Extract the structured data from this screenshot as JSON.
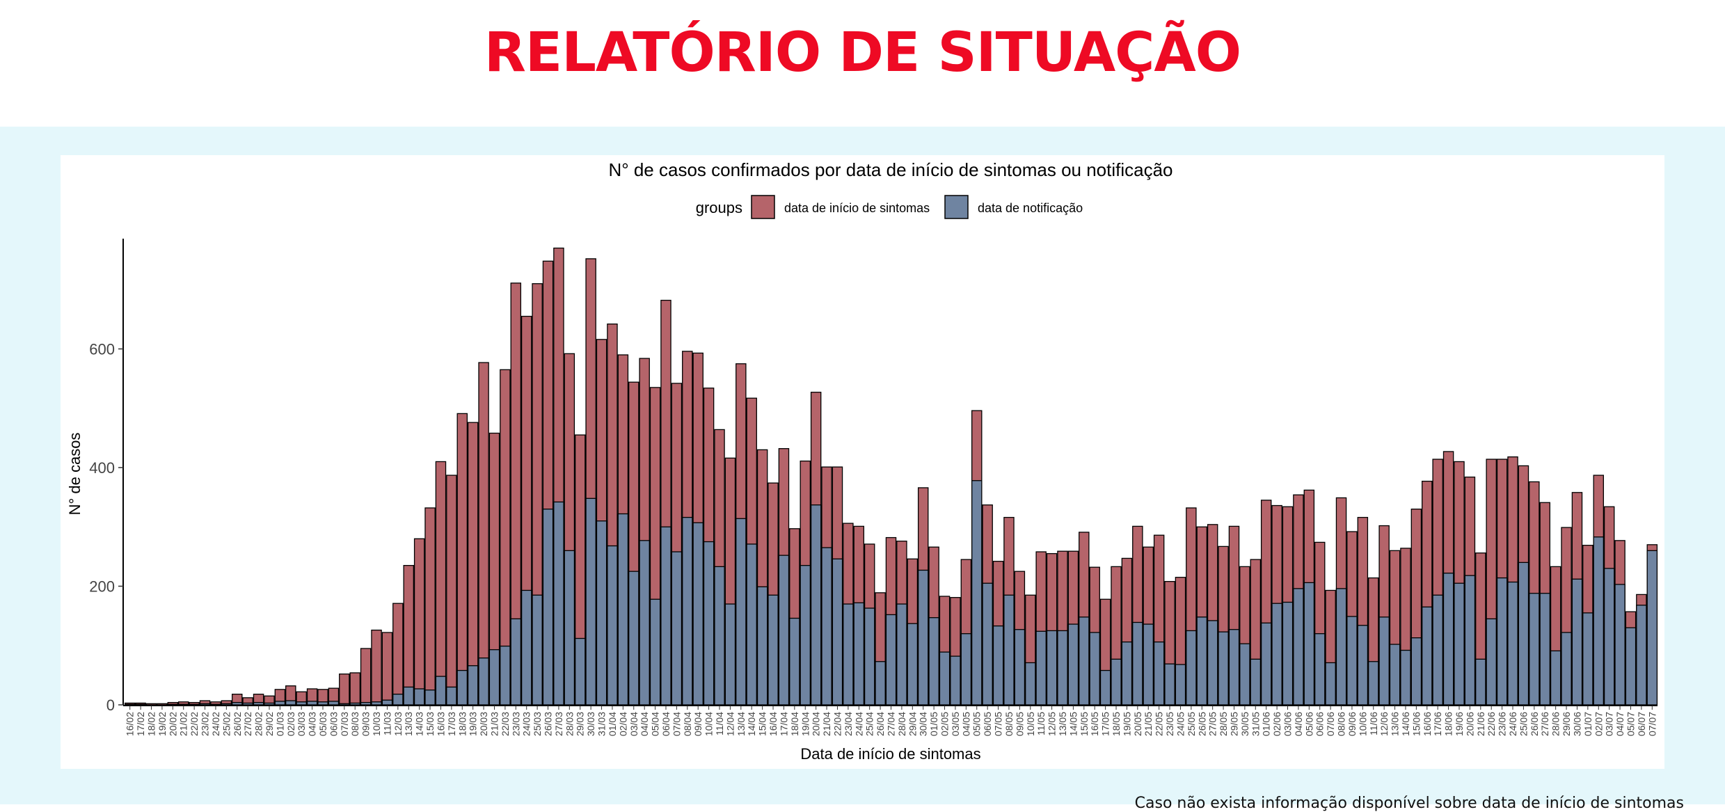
{
  "header": {
    "title": "RELATÓRIO DE SITUAÇÃO"
  },
  "footnote": "Caso não exista informação disponível sobre data de início de sintomas",
  "colors": {
    "title": "#ee0a24",
    "band": "#e4f7fb",
    "onset": "#b5646a",
    "notif": "#6f84a1"
  },
  "chart_data": {
    "type": "bar",
    "title": "N° de casos confirmados por data de início de sintomas ou notificação",
    "xlabel": "Data de início de sintomas",
    "ylabel": "N° de casos",
    "ylim": [
      0,
      780
    ],
    "yticks": [
      0,
      200,
      400,
      600
    ],
    "legend": {
      "title": "groups",
      "placement": "top"
    },
    "categories": [
      "16/02",
      "17/02",
      "18/02",
      "19/02",
      "20/02",
      "21/02",
      "22/02",
      "23/02",
      "24/02",
      "25/02",
      "26/02",
      "27/02",
      "28/02",
      "29/02",
      "01/03",
      "02/03",
      "03/03",
      "04/03",
      "05/03",
      "06/03",
      "07/03",
      "08/03",
      "09/03",
      "10/03",
      "11/03",
      "12/03",
      "13/03",
      "14/03",
      "15/03",
      "16/03",
      "17/03",
      "18/03",
      "19/03",
      "20/03",
      "21/03",
      "22/03",
      "23/03",
      "24/03",
      "25/03",
      "26/03",
      "27/03",
      "28/03",
      "29/03",
      "30/03",
      "31/03",
      "01/04",
      "02/04",
      "03/04",
      "04/04",
      "05/04",
      "06/04",
      "07/04",
      "08/04",
      "09/04",
      "10/04",
      "11/04",
      "12/04",
      "13/04",
      "14/04",
      "15/04",
      "16/04",
      "17/04",
      "18/04",
      "19/04",
      "20/04",
      "21/04",
      "22/04",
      "23/04",
      "24/04",
      "25/04",
      "26/04",
      "27/04",
      "28/04",
      "29/04",
      "30/04",
      "01/05",
      "02/05",
      "03/05",
      "04/05",
      "05/05",
      "06/05",
      "07/05",
      "08/05",
      "09/05",
      "10/05",
      "11/05",
      "12/05",
      "13/05",
      "14/05",
      "15/05",
      "16/05",
      "17/05",
      "18/05",
      "19/05",
      "20/05",
      "21/05",
      "22/05",
      "23/05",
      "24/05",
      "25/05",
      "26/05",
      "27/05",
      "28/05",
      "29/05",
      "30/05",
      "31/05",
      "01/06",
      "02/06",
      "03/06",
      "04/06",
      "05/06",
      "06/06",
      "07/06",
      "08/06",
      "09/06",
      "10/06",
      "11/06",
      "12/06",
      "13/06",
      "14/06",
      "15/06",
      "16/06",
      "17/06",
      "18/06",
      "19/06",
      "20/06",
      "21/06",
      "22/06",
      "23/06",
      "24/06",
      "25/06",
      "26/06",
      "27/06",
      "28/06",
      "29/06",
      "30/06",
      "01/07",
      "02/07",
      "03/07",
      "04/07",
      "05/07",
      "06/07",
      "07/07"
    ],
    "series": [
      {
        "name": "data de início de sintomas",
        "values": [
          3,
          3,
          2,
          2,
          4,
          5,
          4,
          7,
          5,
          7,
          18,
          12,
          18,
          15,
          26,
          32,
          22,
          27,
          26,
          28,
          52,
          54,
          95,
          126,
          122,
          171,
          235,
          280,
          332,
          410,
          387,
          491,
          476,
          577,
          458,
          565,
          711,
          655,
          710,
          748,
          770,
          592,
          455,
          752,
          616,
          642,
          590,
          544,
          584,
          535,
          682,
          542,
          596,
          593,
          534,
          464,
          416,
          575,
          517,
          430,
          374,
          432,
          297,
          411,
          527,
          401,
          401,
          306,
          301,
          271,
          189,
          282,
          276,
          246,
          366,
          266,
          183,
          181,
          245,
          496,
          337,
          242,
          316,
          225,
          185,
          258,
          255,
          259,
          259,
          291,
          232,
          178,
          233,
          247,
          301,
          266,
          286,
          208,
          215,
          332,
          300,
          304,
          267,
          301,
          233,
          245,
          345,
          336,
          334,
          354,
          362,
          274,
          193,
          349,
          292,
          316,
          214,
          302,
          260,
          264,
          330,
          377,
          414,
          427,
          410,
          384,
          256,
          414,
          414,
          418,
          403,
          376,
          341,
          233,
          299,
          358,
          269,
          387,
          334,
          277,
          157,
          186,
          270
        ]
      },
      {
        "name": "data de notificação",
        "values": [
          1,
          1,
          0,
          0,
          1,
          1,
          1,
          2,
          1,
          2,
          4,
          3,
          4,
          3,
          6,
          7,
          5,
          6,
          5,
          6,
          2,
          3,
          4,
          5,
          8,
          18,
          30,
          27,
          25,
          48,
          30,
          58,
          66,
          79,
          93,
          99,
          145,
          193,
          185,
          330,
          342,
          260,
          112,
          348,
          310,
          268,
          322,
          225,
          277,
          178,
          300,
          258,
          316,
          307,
          275,
          233,
          170,
          314,
          271,
          199,
          185,
          252,
          146,
          235,
          337,
          265,
          246,
          170,
          172,
          163,
          73,
          152,
          170,
          137,
          227,
          147,
          89,
          82,
          120,
          378,
          205,
          133,
          185,
          127,
          71,
          124,
          125,
          125,
          136,
          148,
          122,
          58,
          77,
          106,
          139,
          136,
          106,
          69,
          68,
          125,
          148,
          142,
          123,
          127,
          103,
          77,
          138,
          171,
          173,
          196,
          206,
          120,
          71,
          196,
          149,
          134,
          73,
          148,
          102,
          92,
          113,
          165,
          185,
          222,
          205,
          218,
          77,
          145,
          214,
          207,
          240,
          188,
          188,
          91,
          122,
          212,
          155,
          283,
          230,
          203,
          130,
          168,
          260
        ]
      }
    ]
  }
}
